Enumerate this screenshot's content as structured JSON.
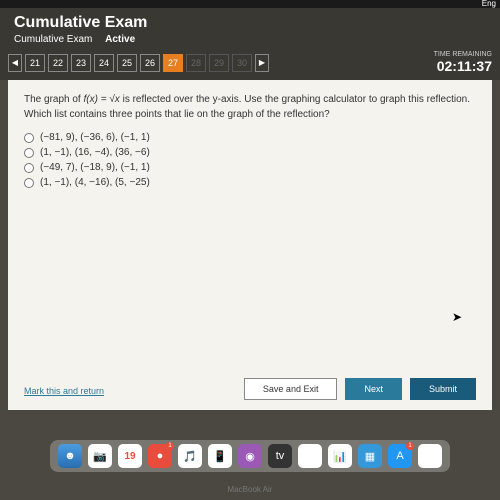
{
  "topbar": {
    "eng": "Eng"
  },
  "header": {
    "title": "Cumulative Exam",
    "subtitle": "Cumulative Exam",
    "active": "Active"
  },
  "nav": {
    "prev": "◀",
    "next": "▶",
    "pages": [
      "21",
      "22",
      "23",
      "24",
      "25",
      "26",
      "27",
      "28",
      "29",
      "30"
    ],
    "active_index": 6,
    "disabled_from": 7
  },
  "timer": {
    "label": "TIME REMAINING",
    "value": "02:11:37"
  },
  "question": {
    "prefix": "The graph of ",
    "func": "f(x) = √x",
    "rest": " is reflected over the y-axis. Use the graphing calculator to graph this reflection. Which list contains three points that lie on the graph of the reflection?"
  },
  "options": [
    "(−81, 9), (−36, 6), (−1, 1)",
    "(1, −1), (16, −4), (36, −6)",
    "(−49, 7), (−18, 9), (−1, 1)",
    "(1, −1), (4, −16), (5, −25)"
  ],
  "actions": {
    "mark": "Mark this and return",
    "save": "Save and Exit",
    "next": "Next",
    "submit": "Submit"
  },
  "dock": [
    {
      "bg": "linear-gradient(#4a9de0,#2a6db0)",
      "icon": "☻",
      "badge": ""
    },
    {
      "bg": "#fff",
      "icon": "📷",
      "badge": ""
    },
    {
      "bg": "#fff",
      "icon": "🗓",
      "badge": "",
      "text": "19"
    },
    {
      "bg": "#e74c3c",
      "icon": "●",
      "badge": "1"
    },
    {
      "bg": "#fff",
      "icon": "🎵",
      "badge": ""
    },
    {
      "bg": "#fff",
      "icon": "📱",
      "badge": ""
    },
    {
      "bg": "#9b59b6",
      "icon": "◉",
      "badge": ""
    },
    {
      "bg": "#333",
      "icon": "tv",
      "badge": ""
    },
    {
      "bg": "#fff",
      "icon": "N",
      "badge": ""
    },
    {
      "bg": "#fff",
      "icon": "📊",
      "badge": ""
    },
    {
      "bg": "#3498db",
      "icon": "▦",
      "badge": ""
    },
    {
      "bg": "#2196f3",
      "icon": "A",
      "badge": "1"
    },
    {
      "bg": "#fff",
      "icon": "◐",
      "badge": ""
    }
  ],
  "macbook": "MacBook Air"
}
